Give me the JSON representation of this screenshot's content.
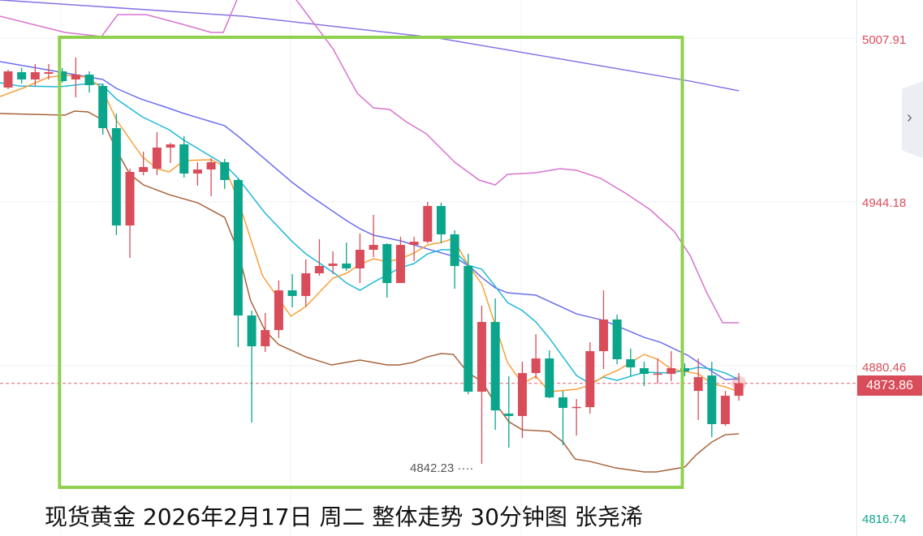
{
  "chart_data": {
    "type": "candlestick",
    "title": "现货黄金 2026年2月17日 周二 整体走势 30分钟图 张尧浠",
    "ylim": [
      4816.74,
      5024.48
    ],
    "y_ticks": [
      "5007.91",
      "4944.18",
      "4880.46",
      "4816.74"
    ],
    "current_price": "4873.86",
    "min_label": "4842.23 ····",
    "colors": {
      "up": "#d94d5a",
      "down": "#0aa58a",
      "highlight_box": "#8fd14f",
      "current_line": "#e86070"
    },
    "highlight_box_range": {
      "from_candle": 5,
      "to_candle": 50
    },
    "candles_ohlc": [
      [
        4990.07,
        4997.08,
        4989.43,
        4996.44
      ],
      [
        4996.12,
        4997.71,
        4991.66,
        4993.25
      ],
      [
        4993.25,
        4999.31,
        4990.7,
        4996.12
      ],
      [
        4995.48,
        4999.31,
        4993.25,
        4996.12
      ],
      [
        4996.44,
        4997.71,
        4991.98,
        4992.62
      ],
      [
        4993.25,
        5001.86,
        4986.24,
        4995.16
      ],
      [
        4995.16,
        4996.44,
        4988.15,
        4991.02
      ],
      [
        4990.7,
        4991.66,
        4971.58,
        4974.13
      ],
      [
        4974.13,
        4979.87,
        4932.07,
        4935.89
      ],
      [
        4935.89,
        4958.2,
        4923.15,
        4956.93
      ],
      [
        4956.93,
        4964.89,
        4955.65,
        4958.84
      ],
      [
        4958.2,
        4972.54,
        4955.65,
        4966.49
      ],
      [
        4966.49,
        4968.4,
        4960.43,
        4967.76
      ],
      [
        4967.76,
        4970.95,
        4954.7,
        4956.29
      ],
      [
        4956.29,
        4960.75,
        4951.51,
        4957.88
      ],
      [
        4957.88,
        4962.35,
        4947.37,
        4960.75
      ],
      [
        4960.75,
        4962.03,
        4950.24,
        4953.74
      ],
      [
        4953.74,
        4954.38,
        4888.1,
        4900.53
      ],
      [
        4900.53,
        4902.44,
        4858.46,
        4888.42
      ],
      [
        4888.42,
        4901.48,
        4886.18,
        4894.79
      ],
      [
        4894.79,
        4914.23,
        4891.6,
        4910.4
      ],
      [
        4910.4,
        4916.78,
        4903.71,
        4908.17
      ],
      [
        4908.17,
        4922.52,
        4904.03,
        4917.1
      ],
      [
        4917.1,
        4930.48,
        4916.14,
        4919.97
      ],
      [
        4919.97,
        4925.7,
        4916.78,
        4920.92
      ],
      [
        4920.92,
        4929.2,
        4918.05,
        4919.01
      ],
      [
        4919.01,
        4932.71,
        4913.27,
        4926.34
      ],
      [
        4926.34,
        4940.04,
        4923.47,
        4928.25
      ],
      [
        4928.57,
        4928.89,
        4907.54,
        4913.27
      ],
      [
        4913.27,
        4931.44,
        4913.27,
        4928.25
      ],
      [
        4928.25,
        4931.44,
        4921.88,
        4929.52
      ],
      [
        4929.52,
        4945.14,
        4928.89,
        4943.54
      ],
      [
        4943.54,
        4944.82,
        4928.89,
        4932.39
      ],
      [
        4932.39,
        4933.99,
        4911.04,
        4919.97
      ],
      [
        4919.97,
        4924.74,
        4869.61,
        4870.57
      ],
      [
        4870.57,
        4904.35,
        4842.23,
        4897.97
      ],
      [
        4897.97,
        4907.22,
        4855.59,
        4863.24
      ],
      [
        4861.97,
        4876.62,
        4848.58,
        4861.01
      ],
      [
        4861.01,
        4882.36,
        4852.4,
        4877.9
      ],
      [
        4877.9,
        4893.19,
        4875.66,
        4883.63
      ],
      [
        4883.63,
        4886.82,
        4868.02,
        4868.34
      ],
      [
        4868.34,
        4870.89,
        4849.53,
        4864.2
      ],
      [
        4864.51,
        4867.7,
        4853.36,
        4864.6
      ],
      [
        4864.51,
        4890.01,
        4861.97,
        4886.5
      ],
      [
        4886.5,
        4910.4,
        4879.49,
        4898.93
      ],
      [
        4898.93,
        4900.84,
        4881.4,
        4883.32
      ],
      [
        4883.32,
        4887.46,
        4876.62,
        4880.13
      ],
      [
        4879.81,
        4882.36,
        4872.8,
        4877.58
      ],
      [
        4877.58,
        4883.63,
        4873.75,
        4877.7
      ],
      [
        4877.58,
        4886.5,
        4874.71,
        4879.81
      ],
      [
        4879.81,
        4881.72,
        4876.62,
        4878.53
      ],
      [
        4870.89,
        4883.63,
        4859.42,
        4876.3
      ],
      [
        4876.94,
        4882.36,
        4852.72,
        4857.82
      ],
      [
        4857.82,
        4870.89,
        4857.18,
        4868.97
      ],
      [
        4868.97,
        4877.9,
        4867.06,
        4873.86
      ]
    ],
    "lines": [
      {
        "color": "#8a72e6",
        "points": [
          [
            -0.6,
            5024.5
          ],
          [
            17.4,
            5018.1
          ],
          [
            31.8,
            5009.5
          ],
          [
            50.4,
            4992.6
          ],
          [
            54,
            4988.8
          ]
        ]
      },
      {
        "color": "#d874cf",
        "points": [
          [
            -0.6,
            5018.11
          ],
          [
            4.2,
            5011.73
          ],
          [
            6.9,
            5010.14
          ],
          [
            8.1,
            5018.74
          ],
          [
            10.2,
            5018.74
          ],
          [
            12.9,
            5014.92
          ],
          [
            15,
            5011.73
          ],
          [
            15.9,
            5011.73
          ],
          [
            17.4,
            5030.85
          ],
          [
            20.4,
            5030.85
          ],
          [
            22.2,
            5018.11
          ],
          [
            24,
            5005.36
          ],
          [
            25.8,
            4987.84
          ],
          [
            27,
            4982.1
          ],
          [
            28.2,
            4981.46
          ],
          [
            29.4,
            4976.68
          ],
          [
            30.9,
            4971.9
          ],
          [
            33,
            4960.75
          ],
          [
            34.8,
            4953.74
          ],
          [
            36,
            4951.83
          ],
          [
            36.9,
            4955.97
          ],
          [
            39,
            4956.61
          ],
          [
            40.8,
            4958.2
          ],
          [
            42,
            4957.56
          ],
          [
            43.8,
            4954.38
          ],
          [
            45.6,
            4948.64
          ],
          [
            47.4,
            4942.27
          ],
          [
            49.2,
            4933.67
          ],
          [
            50.4,
            4924.1
          ],
          [
            51.6,
            4909.77
          ],
          [
            52.8,
            4897.65
          ],
          [
            54,
            4897.65
          ]
        ]
      },
      {
        "color": "#a8623a",
        "points": [
          [
            -0.6,
            4979.87
          ],
          [
            4.2,
            4979.23
          ],
          [
            4.9,
            4980.82
          ],
          [
            5.9,
            4980.51
          ],
          [
            7,
            4977.32
          ],
          [
            8,
            4965.53
          ],
          [
            9,
            4955.97
          ],
          [
            10,
            4951.83
          ],
          [
            11.9,
            4948.0
          ],
          [
            14,
            4944.82
          ],
          [
            16,
            4939.08
          ],
          [
            17,
            4925.7
          ],
          [
            17.9,
            4906.58
          ],
          [
            19,
            4894.47
          ],
          [
            20,
            4889.06
          ],
          [
            22,
            4884.27
          ],
          [
            23.9,
            4881.09
          ],
          [
            26,
            4883.0
          ],
          [
            28,
            4881.09
          ],
          [
            28.9,
            4881.09
          ],
          [
            29.9,
            4882.04
          ],
          [
            31,
            4884.27
          ],
          [
            32,
            4885.55
          ],
          [
            32.9,
            4885.23
          ],
          [
            34,
            4877.9
          ],
          [
            35,
            4874.71
          ],
          [
            35.9,
            4866.75
          ],
          [
            37,
            4858.78
          ],
          [
            38,
            4855.59
          ],
          [
            40,
            4854.96
          ],
          [
            41,
            4850.81
          ],
          [
            41.9,
            4844.12
          ],
          [
            43,
            4843.17
          ],
          [
            44.9,
            4840.62
          ],
          [
            47,
            4839.03
          ],
          [
            47.9,
            4839.03
          ],
          [
            50,
            4840.94
          ],
          [
            50.9,
            4846.04
          ],
          [
            52,
            4850.81
          ],
          [
            53,
            4853.68
          ],
          [
            54,
            4854.0
          ]
        ]
      },
      {
        "color": "#6b6ef0",
        "points": [
          [
            -0.6,
            5000.26
          ],
          [
            7,
            4993.25
          ],
          [
            8,
            4989.75
          ],
          [
            9.8,
            4985.6
          ],
          [
            11.8,
            4982.1
          ],
          [
            13,
            4979.87
          ],
          [
            16,
            4975.09
          ],
          [
            17,
            4970.95
          ],
          [
            21,
            4952.78
          ],
          [
            22.2,
            4948.0
          ],
          [
            25,
            4937.81
          ],
          [
            26,
            4934.62
          ],
          [
            27,
            4932.07
          ],
          [
            29,
            4929.84
          ],
          [
            31,
            4926.65
          ],
          [
            32.9,
            4923.78
          ],
          [
            34.2,
            4919.33
          ],
          [
            35,
            4915.45
          ],
          [
            36,
            4911.36
          ],
          [
            36.9,
            4909.45
          ],
          [
            39,
            4908.49
          ],
          [
            42,
            4901.16
          ],
          [
            44,
            4898.61
          ],
          [
            47,
            4891.92
          ],
          [
            48.2,
            4890.01
          ],
          [
            50.2,
            4884.91
          ],
          [
            52.2,
            4877.9
          ],
          [
            53,
            4875.35
          ],
          [
            54,
            4875.66
          ]
        ]
      },
      {
        "color": "#1fb8d8",
        "points": [
          [
            -0.6,
            4991.98
          ],
          [
            0.8,
            4990.7
          ],
          [
            3.8,
            4990.39
          ],
          [
            6,
            4991.66
          ],
          [
            6.9,
            4991.34
          ],
          [
            8,
            4985.6
          ],
          [
            9.9,
            4978.59
          ],
          [
            11.9,
            4973.5
          ],
          [
            13,
            4969.35
          ],
          [
            16,
            4959.79
          ],
          [
            17,
            4954.38
          ],
          [
            19,
            4940.68
          ],
          [
            21,
            4929.52
          ],
          [
            22,
            4924.74
          ],
          [
            24.2,
            4916.78
          ],
          [
            25,
            4913.27
          ],
          [
            26,
            4910.4
          ],
          [
            27,
            4913.59
          ],
          [
            29,
            4919.33
          ],
          [
            30,
            4920.92
          ],
          [
            31,
            4924.74
          ],
          [
            32,
            4926.34
          ],
          [
            32.9,
            4926.34
          ],
          [
            34,
            4920.28
          ],
          [
            35,
            4918.69
          ],
          [
            36,
            4911.99
          ],
          [
            36.9,
            4905.62
          ],
          [
            38,
            4902.44
          ],
          [
            39,
            4897.97
          ],
          [
            40,
            4891.6
          ],
          [
            42,
            4876.94
          ],
          [
            43,
            4873.75
          ],
          [
            44,
            4876.3
          ],
          [
            45,
            4875.03
          ],
          [
            47,
            4878.22
          ],
          [
            49,
            4877.9
          ],
          [
            51,
            4880.13
          ],
          [
            52,
            4879.49
          ],
          [
            53,
            4877.9
          ],
          [
            54,
            4875.35
          ]
        ]
      },
      {
        "color": "#f7a03c",
        "points": [
          [
            -0.6,
            4986.56
          ],
          [
            1.2,
            4990.07
          ],
          [
            3,
            4994.21
          ],
          [
            4.4,
            4994.85
          ],
          [
            5.8,
            4994.21
          ],
          [
            6.9,
            4990.07
          ],
          [
            8,
            4977.32
          ],
          [
            9.9,
            4962.98
          ],
          [
            11,
            4958.2
          ],
          [
            11.9,
            4956.93
          ],
          [
            13,
            4961.39
          ],
          [
            15,
            4961.71
          ],
          [
            16,
            4959.16
          ],
          [
            17,
            4945.78
          ],
          [
            18.8,
            4916.14
          ],
          [
            20.9,
            4900.21
          ],
          [
            22,
            4904.03
          ],
          [
            24,
            4915.18
          ],
          [
            25,
            4917.1
          ],
          [
            26,
            4920.6
          ],
          [
            27,
            4922.83
          ],
          [
            28,
            4921.56
          ],
          [
            29,
            4922.83
          ],
          [
            30,
            4925.06
          ],
          [
            31,
            4928.25
          ],
          [
            32,
            4929.2
          ],
          [
            32.9,
            4930.8
          ],
          [
            34,
            4920.28
          ],
          [
            35,
            4912.95
          ],
          [
            36.9,
            4882.04
          ],
          [
            38,
            4873.75
          ],
          [
            39,
            4876.62
          ],
          [
            40,
            4870.57
          ],
          [
            42,
            4871.53
          ],
          [
            43,
            4873.12
          ],
          [
            44,
            4876.62
          ],
          [
            45,
            4878.85
          ],
          [
            47,
            4885.23
          ],
          [
            48,
            4883.32
          ],
          [
            49,
            4879.49
          ],
          [
            51,
            4877.58
          ],
          [
            52,
            4873.75
          ],
          [
            53,
            4872.48
          ],
          [
            54,
            4870.57
          ]
        ]
      }
    ]
  }
}
